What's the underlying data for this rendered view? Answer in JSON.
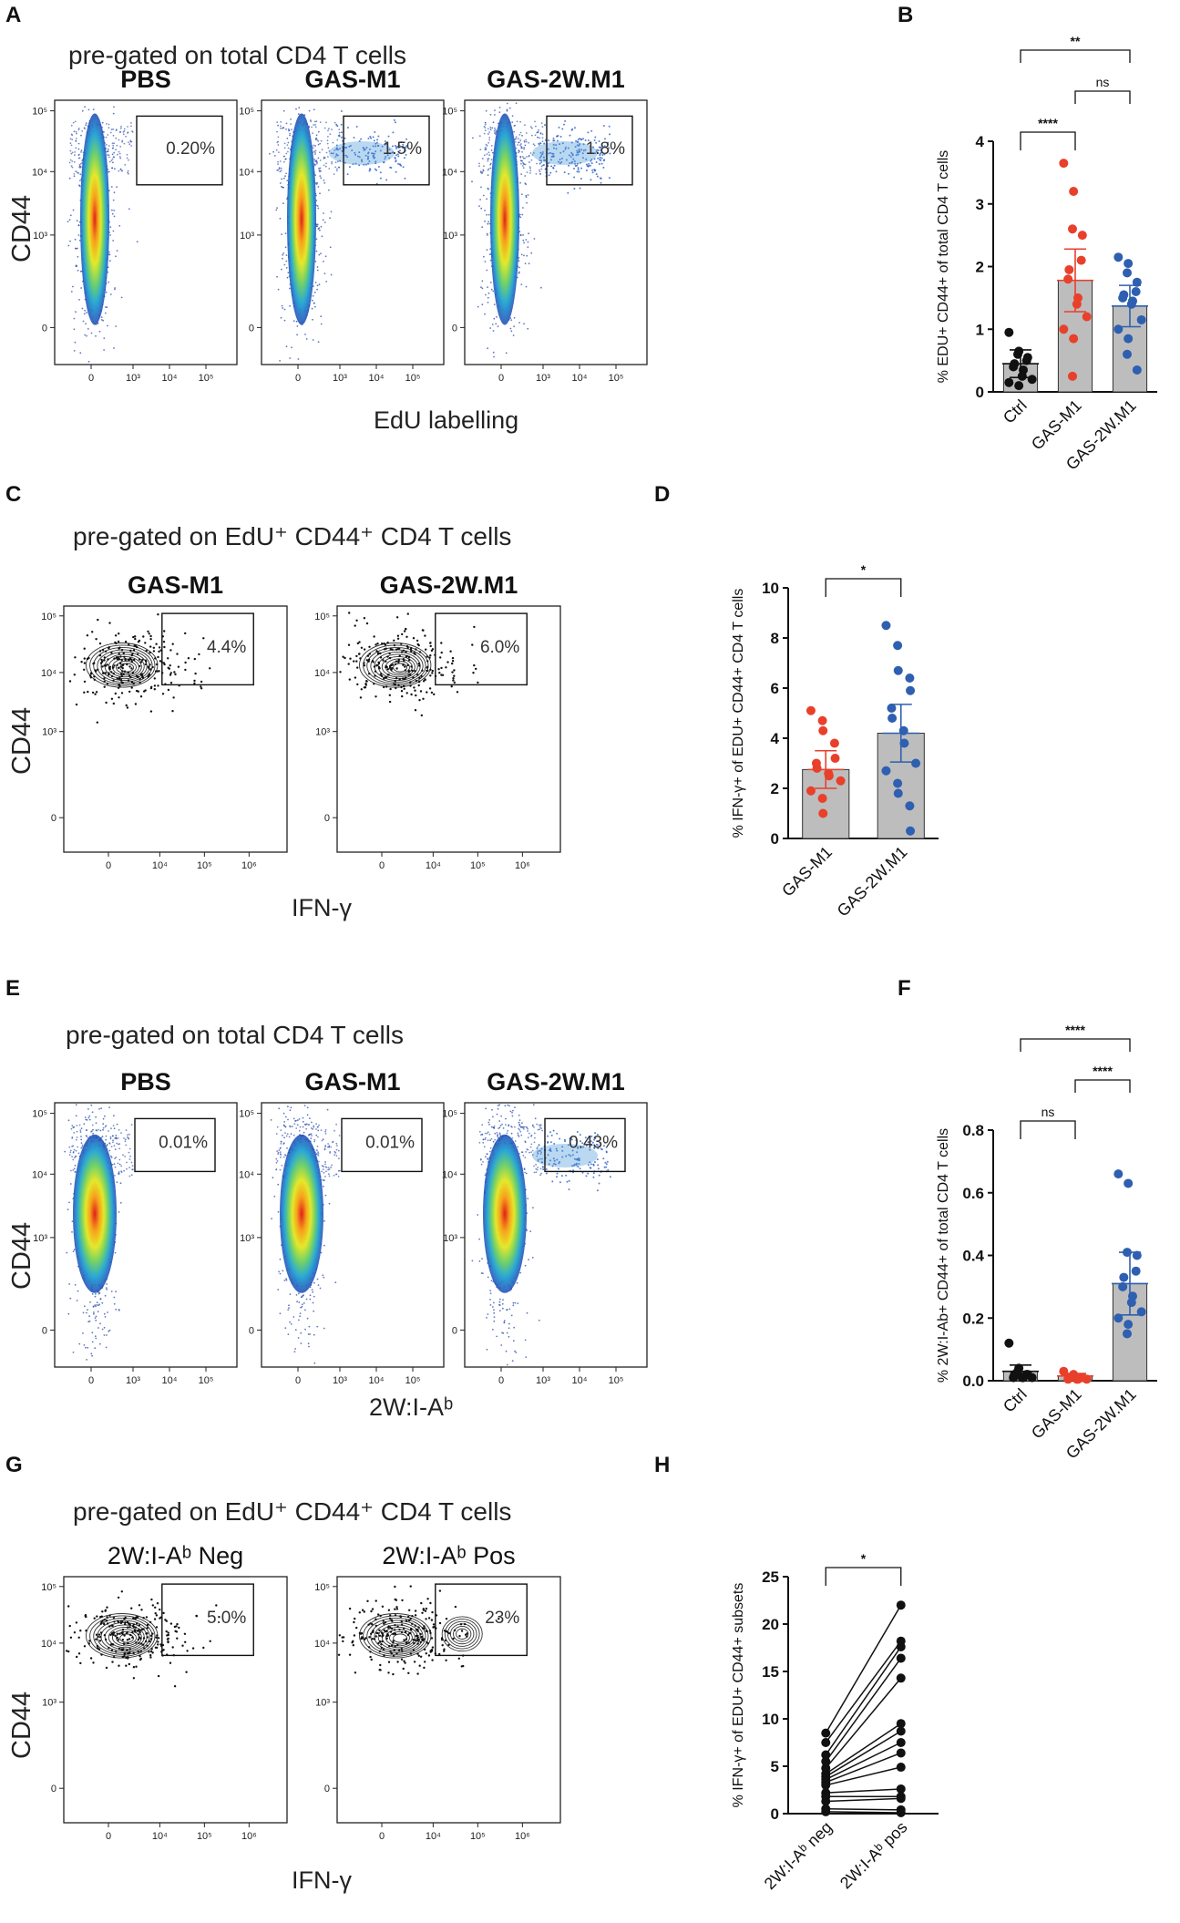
{
  "panel_labels": [
    "A",
    "B",
    "C",
    "D",
    "E",
    "F",
    "G",
    "H"
  ],
  "colors": {
    "ctrl": "#111111",
    "gas_m1": "#e8402a",
    "gas_2w": "#2e5fb0",
    "bar": "#bdbdbd"
  },
  "A": {
    "pregate": "pre-gated on total CD4 T cells",
    "titles": [
      "PBS",
      "GAS-M1",
      "GAS-2W.M1"
    ],
    "percents": [
      "0.20%",
      "1.5%",
      "1.8%"
    ],
    "ylabel": "CD44",
    "xlabel": "EdU labelling",
    "x_ticks": [
      "0",
      "10³",
      "10⁴",
      "10⁵"
    ],
    "y_ticks": [
      "10⁵",
      "10⁴",
      "10³",
      "0"
    ]
  },
  "C": {
    "pregate": "pre-gated on EdU⁺ CD44⁺ CD4 T cells",
    "titles": [
      "GAS-M1",
      "GAS-2W.M1"
    ],
    "percents": [
      "4.4%",
      "6.0%"
    ],
    "ylabel": "CD44",
    "xlabel": "IFN-γ",
    "x_ticks": [
      "0",
      "10⁴",
      "10⁵",
      "10⁶"
    ],
    "y_ticks": [
      "10⁵",
      "10⁴",
      "10³",
      "0"
    ]
  },
  "E": {
    "pregate": "pre-gated on total CD4 T cells",
    "titles": [
      "PBS",
      "GAS-M1",
      "GAS-2W.M1"
    ],
    "percents": [
      "0.01%",
      "0.01%",
      "0.43%"
    ],
    "ylabel": "CD44",
    "xlabel": "2W:I-Aᵇ",
    "x_ticks": [
      "0",
      "10³",
      "10⁴",
      "10⁵"
    ],
    "y_ticks": [
      "10⁵",
      "10⁴",
      "10³",
      "0"
    ]
  },
  "G": {
    "pregate": "pre-gated on EdU⁺ CD44⁺ CD4 T cells",
    "titles": [
      "2W:I-Aᵇ Neg",
      "2W:I-Aᵇ Pos"
    ],
    "percents": [
      "5.0%",
      "23%"
    ],
    "ylabel": "CD44",
    "xlabel": "IFN-γ",
    "x_ticks": [
      "0",
      "10⁴",
      "10⁵",
      "10⁶"
    ],
    "y_ticks": [
      "10⁵",
      "10⁴",
      "10³",
      "0"
    ]
  },
  "chart_data": [
    {
      "panel": "B",
      "type": "bar",
      "ylabel": "% EDU+ CD44+ of total CD4 T cells",
      "categories": [
        "Ctrl",
        "GAS-M1",
        "GAS-2W.M1"
      ],
      "means": [
        0.45,
        1.78,
        1.37
      ],
      "sd": [
        0.22,
        0.5,
        0.33
      ],
      "points": [
        [
          0.95,
          0.65,
          0.6,
          0.55,
          0.5,
          0.45,
          0.4,
          0.35,
          0.25,
          0.2,
          0.15,
          0.1
        ],
        [
          3.65,
          3.2,
          2.6,
          2.5,
          2.1,
          1.95,
          1.8,
          1.5,
          1.4,
          1.2,
          1.0,
          0.85,
          0.25
        ],
        [
          2.15,
          2.05,
          1.9,
          1.75,
          1.6,
          1.55,
          1.5,
          1.45,
          1.4,
          1.15,
          1.0,
          0.85,
          0.6,
          0.35
        ]
      ],
      "ylim": [
        0,
        4
      ],
      "yticks": [
        "0",
        "1",
        "2",
        "3",
        "4"
      ],
      "comparisons": [
        {
          "pair": [
            0,
            1
          ],
          "label": "****"
        },
        {
          "pair": [
            1,
            2
          ],
          "label": "ns"
        },
        {
          "pair": [
            0,
            2
          ],
          "label": "**"
        }
      ]
    },
    {
      "panel": "D",
      "type": "bar",
      "ylabel": "% IFN-γ+ of EDU+ CD44+ CD4 T cells",
      "categories": [
        "GAS-M1",
        "GAS-2W.M1"
      ],
      "means": [
        2.75,
        4.2
      ],
      "sd": [
        0.75,
        1.15
      ],
      "points": [
        [
          5.1,
          4.7,
          4.3,
          3.8,
          3.2,
          3.0,
          2.8,
          2.6,
          2.5,
          2.3,
          1.9,
          1.6,
          1.0
        ],
        [
          8.5,
          7.7,
          6.7,
          6.4,
          5.9,
          5.2,
          4.8,
          4.3,
          3.8,
          3.0,
          2.7,
          2.2,
          1.8,
          1.3,
          0.3
        ]
      ],
      "ylim": [
        0,
        10
      ],
      "yticks": [
        "0",
        "2",
        "4",
        "6",
        "8",
        "10"
      ],
      "comparisons": [
        {
          "pair": [
            0,
            1
          ],
          "label": "*"
        }
      ]
    },
    {
      "panel": "F",
      "type": "bar",
      "ylabel": "% 2W:I-Ab+ CD44+ of total CD4 T cells",
      "categories": [
        "Ctrl",
        "GAS-M1",
        "GAS-2W.M1"
      ],
      "means": [
        0.03,
        0.015,
        0.31
      ],
      "sd": [
        0.02,
        0.008,
        0.1
      ],
      "points": [
        [
          0.12,
          0.04,
          0.03,
          0.02,
          0.02,
          0.02,
          0.01,
          0.01,
          0.01,
          0.01
        ],
        [
          0.03,
          0.02,
          0.015,
          0.01,
          0.01,
          0.01,
          0.005,
          0.005,
          0.005,
          0.005
        ],
        [
          0.66,
          0.63,
          0.41,
          0.4,
          0.35,
          0.33,
          0.3,
          0.27,
          0.25,
          0.22,
          0.2,
          0.18,
          0.15
        ]
      ],
      "ylim": [
        0,
        0.8
      ],
      "yticks": [
        "0.0",
        "0.2",
        "0.4",
        "0.6",
        "0.8"
      ],
      "comparisons": [
        {
          "pair": [
            0,
            1
          ],
          "label": "ns"
        },
        {
          "pair": [
            1,
            2
          ],
          "label": "****"
        },
        {
          "pair": [
            0,
            2
          ],
          "label": "****"
        }
      ]
    },
    {
      "panel": "H",
      "type": "paired-line",
      "ylabel": "% IFN-γ+ of EDU+ CD44+ subsets",
      "categories": [
        "2W:I-Aᵇ neg",
        "2W:I-Aᵇ pos"
      ],
      "pairs": [
        [
          8.5,
          22.0
        ],
        [
          7.5,
          18.2
        ],
        [
          6.2,
          17.6
        ],
        [
          5.5,
          16.4
        ],
        [
          4.8,
          14.3
        ],
        [
          4.2,
          9.5
        ],
        [
          3.9,
          8.7
        ],
        [
          3.6,
          7.5
        ],
        [
          3.3,
          6.4
        ],
        [
          3.0,
          4.9
        ],
        [
          2.2,
          2.6
        ],
        [
          1.8,
          1.8
        ],
        [
          1.3,
          1.6
        ],
        [
          0.5,
          0.4
        ],
        [
          0.2,
          0.1
        ]
      ],
      "ylim": [
        0,
        25
      ],
      "yticks": [
        "0",
        "5",
        "10",
        "15",
        "20",
        "25"
      ],
      "comparisons": [
        {
          "pair": [
            0,
            1
          ],
          "label": "*"
        }
      ]
    }
  ]
}
